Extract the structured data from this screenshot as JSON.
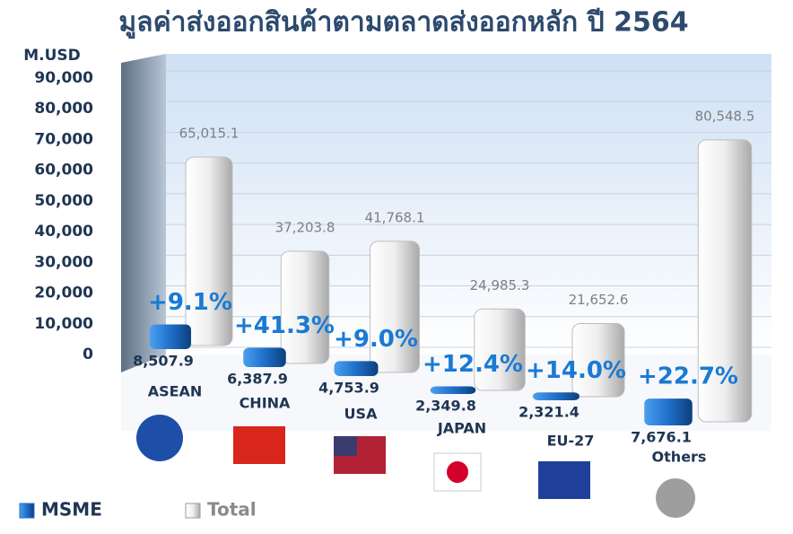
{
  "chart_data": {
    "type": "bar3d",
    "title": "มูลค่าส่งออกสินค้าตามตลาดส่งออกหลัก ปี 2564",
    "y_axis_label": "M.USD",
    "categories": [
      "ASEAN",
      "CHINA",
      "USA",
      "JAPAN",
      "EU-27",
      "Others"
    ],
    "series": [
      {
        "name": "MSME",
        "color": "#1f6fc9",
        "values": [
          8507.9,
          6387.9,
          4753.9,
          2349.8,
          2321.4,
          7676.1
        ],
        "value_labels": [
          "8,507.9",
          "6,387.9",
          "4,753.9",
          "2,349.8",
          "2,321.4",
          "7,676.1"
        ]
      },
      {
        "name": "Total",
        "color": "#e4e4e4",
        "values": [
          65015.1,
          37203.8,
          41768.1,
          24985.3,
          21652.6,
          80548.5
        ],
        "value_labels": [
          "65,015.1",
          "37,203.8",
          "41,768.1",
          "24,985.3",
          "21,652.6",
          "80,548.5"
        ]
      }
    ],
    "annotations": [
      "+9.1%",
      "+41.3%",
      "+9.0%",
      "+12.4%",
      "+14.0%",
      "+22.7%"
    ],
    "ylim": [
      0,
      90000
    ],
    "yticks": [
      0,
      {
        "value": 10000,
        "label": "10,000"
      },
      {
        "value": 20000,
        "label": "20,000"
      },
      {
        "value": 30000,
        "label": "30,000"
      },
      {
        "value": 40000,
        "label": "40,000"
      },
      {
        "value": 50000,
        "label": "50,000"
      },
      {
        "value": 60000,
        "label": "60,000"
      },
      {
        "value": 70000,
        "label": "70,000"
      },
      {
        "value": 80000,
        "label": "80,000"
      },
      {
        "value": 90000,
        "label": "90,000"
      }
    ],
    "grid": true
  }
}
